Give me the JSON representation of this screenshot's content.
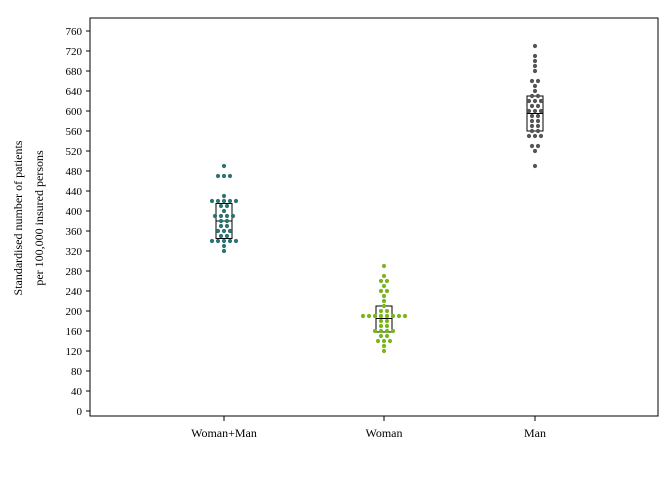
{
  "chart_data": {
    "type": "scatter",
    "subtype": "dot-plot-with-box",
    "ylabel_lines": [
      "Standardised number of patients",
      "per 100,000 insured persons"
    ],
    "xlabel": "",
    "ylim": [
      0,
      780
    ],
    "yticks": [
      0,
      40,
      80,
      120,
      160,
      200,
      240,
      280,
      320,
      360,
      400,
      440,
      480,
      520,
      560,
      600,
      640,
      680,
      720,
      760
    ],
    "categories": [
      "Woman+Man",
      "Woman",
      "Man"
    ],
    "grid": false,
    "series": [
      {
        "category": "Woman+Man",
        "color": "#2e7373",
        "box": {
          "q1": 345,
          "median": 380,
          "q3": 415
        },
        "points": [
          490,
          470,
          470,
          470,
          430,
          420,
          420,
          420,
          420,
          420,
          410,
          410,
          400,
          390,
          390,
          390,
          390,
          380,
          380,
          370,
          370,
          360,
          360,
          360,
          350,
          350,
          340,
          340,
          340,
          340,
          340,
          330,
          320
        ]
      },
      {
        "category": "Woman",
        "color": "#7ab51d",
        "box": {
          "q1": 158,
          "median": 185,
          "q3": 210
        },
        "points": [
          290,
          270,
          260,
          260,
          250,
          240,
          240,
          230,
          220,
          210,
          200,
          200,
          190,
          190,
          190,
          190,
          190,
          190,
          190,
          190,
          180,
          180,
          170,
          170,
          160,
          160,
          160,
          160,
          150,
          150,
          140,
          140,
          140,
          130,
          120
        ]
      },
      {
        "category": "Man",
        "color": "#555555",
        "box": {
          "q1": 560,
          "median": 595,
          "q3": 630
        },
        "points": [
          730,
          710,
          700,
          690,
          680,
          660,
          660,
          650,
          640,
          630,
          630,
          620,
          620,
          620,
          610,
          610,
          600,
          600,
          600,
          590,
          590,
          580,
          580,
          570,
          570,
          560,
          560,
          550,
          550,
          550,
          530,
          530,
          520,
          490
        ]
      }
    ]
  }
}
